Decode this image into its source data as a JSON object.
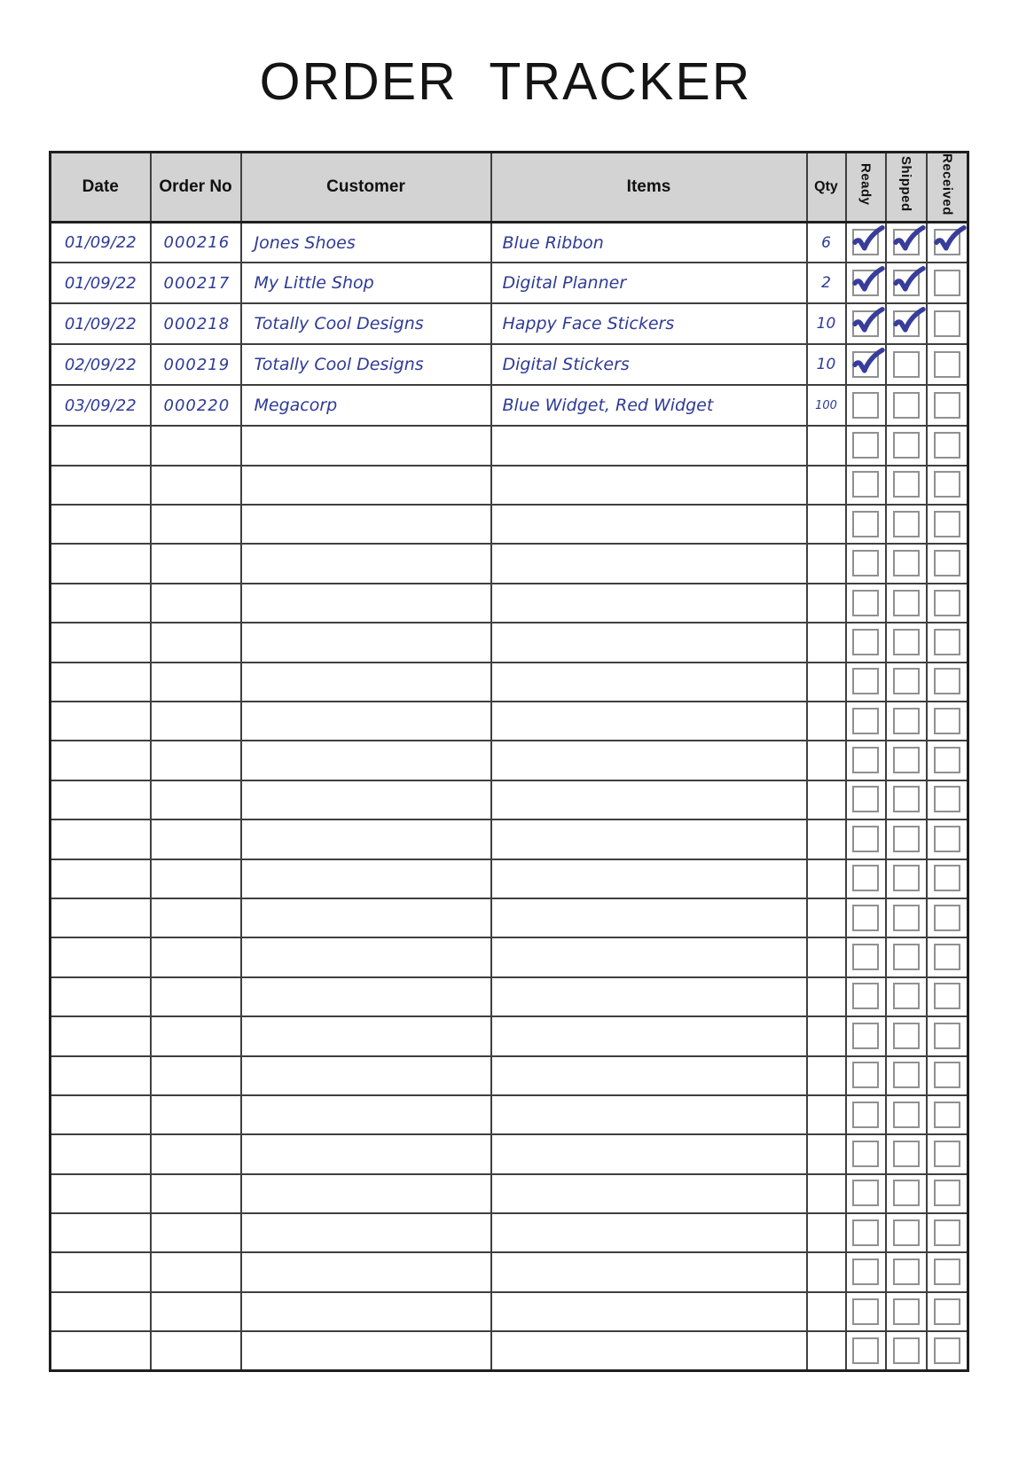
{
  "page": {
    "title": "ORDER  TRACKER"
  },
  "table": {
    "columns": {
      "date": "Date",
      "order_no": "Order No",
      "customer": "Customer",
      "items": "Items",
      "qty": "Qty",
      "ready": "Ready",
      "shipped": "Shipped",
      "received": "Received"
    },
    "rows": [
      {
        "date": "01/09/22",
        "order_no": "000216",
        "customer": "Jones Shoes",
        "items": "Blue Ribbon",
        "qty": "6",
        "ready": true,
        "shipped": true,
        "received": true
      },
      {
        "date": "01/09/22",
        "order_no": "000217",
        "customer": "My Little Shop",
        "items": "Digital Planner",
        "qty": "2",
        "ready": true,
        "shipped": true,
        "received": false
      },
      {
        "date": "01/09/22",
        "order_no": "000218",
        "customer": "Totally Cool Designs",
        "items": "Happy Face Stickers",
        "qty": "10",
        "ready": true,
        "shipped": true,
        "received": false
      },
      {
        "date": "02/09/22",
        "order_no": "000219",
        "customer": "Totally Cool Designs",
        "items": "Digital Stickers",
        "qty": "10",
        "ready": true,
        "shipped": false,
        "received": false
      },
      {
        "date": "03/09/22",
        "order_no": "000220",
        "customer": "Megacorp",
        "items": "Blue Widget, Red Widget",
        "qty": "100",
        "ready": false,
        "shipped": false,
        "received": false
      }
    ],
    "empty_row_count": 24,
    "colors": {
      "ink": "#2e3a96",
      "check": "#383d9b",
      "header_bg": "#d3d3d3",
      "grid": "#3f3f3f",
      "checkbox_border": "#909090"
    }
  }
}
